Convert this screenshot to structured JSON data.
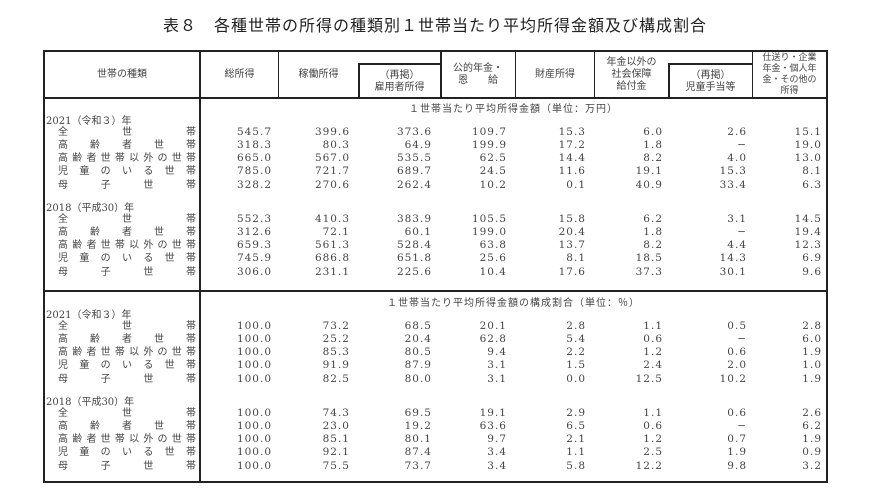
{
  "title": "表８　各種世帯の所得の種類別１世帯当たり平均所得金額及び構成割合",
  "headers": {
    "household_type": "世帯の種類",
    "total_income": "総所得",
    "earned_income": "稼働所得",
    "employee_income": "（再掲）\n雇用者所得",
    "public_pension": "公的年金・\n恩　　給",
    "property_income": "財産所得",
    "social_security": "年金以外の\n社会保障\n給付金",
    "child_allowance": "（再掲）\n児童手当等",
    "other_income": "仕送り・企業\n年金・個人年\n金・その他の\n所得"
  },
  "sections": [
    {
      "caption": "１世帯当たり平均所得金額（単位：万円）",
      "groups": [
        {
          "year": "2021（令和３）年",
          "rows": [
            {
              "label": "全世帯",
              "values": [
                "545.7",
                "399.6",
                "373.6",
                "109.7",
                "15.3",
                "6.0",
                "2.6",
                "15.1"
              ]
            },
            {
              "label": "高齢者世帯",
              "values": [
                "318.3",
                "80.3",
                "64.9",
                "199.9",
                "17.2",
                "1.8",
                "−",
                "19.0"
              ]
            },
            {
              "label": "高齢者世帯以外の世帯",
              "values": [
                "665.0",
                "567.0",
                "535.5",
                "62.5",
                "14.4",
                "8.2",
                "4.0",
                "13.0"
              ]
            },
            {
              "label": "児童のいる世帯",
              "values": [
                "785.0",
                "721.7",
                "689.7",
                "24.5",
                "11.6",
                "19.1",
                "15.3",
                "8.1"
              ]
            },
            {
              "label": "母子世帯",
              "values": [
                "328.2",
                "270.6",
                "262.4",
                "10.2",
                "0.1",
                "40.9",
                "33.4",
                "6.3"
              ]
            }
          ]
        },
        {
          "year": "2018（平成30）年",
          "rows": [
            {
              "label": "全世帯",
              "values": [
                "552.3",
                "410.3",
                "383.9",
                "105.5",
                "15.8",
                "6.2",
                "3.1",
                "14.5"
              ]
            },
            {
              "label": "高齢者世帯",
              "values": [
                "312.6",
                "72.1",
                "60.1",
                "199.0",
                "20.4",
                "1.8",
                "−",
                "19.4"
              ]
            },
            {
              "label": "高齢者世帯以外の世帯",
              "values": [
                "659.3",
                "561.3",
                "528.4",
                "63.8",
                "13.7",
                "8.2",
                "4.4",
                "12.3"
              ]
            },
            {
              "label": "児童のいる世帯",
              "values": [
                "745.9",
                "686.8",
                "651.8",
                "25.6",
                "8.1",
                "18.5",
                "14.3",
                "6.9"
              ]
            },
            {
              "label": "母子世帯",
              "values": [
                "306.0",
                "231.1",
                "225.6",
                "10.4",
                "17.6",
                "37.3",
                "30.1",
                "9.6"
              ]
            }
          ]
        }
      ]
    },
    {
      "caption": "１世帯当たり平均所得金額の構成割合（単位：％）",
      "groups": [
        {
          "year": "2021（令和３）年",
          "rows": [
            {
              "label": "全世帯",
              "values": [
                "100.0",
                "73.2",
                "68.5",
                "20.1",
                "2.8",
                "1.1",
                "0.5",
                "2.8"
              ]
            },
            {
              "label": "高齢者世帯",
              "values": [
                "100.0",
                "25.2",
                "20.4",
                "62.8",
                "5.4",
                "0.6",
                "−",
                "6.0"
              ]
            },
            {
              "label": "高齢者世帯以外の世帯",
              "values": [
                "100.0",
                "85.3",
                "80.5",
                "9.4",
                "2.2",
                "1.2",
                "0.6",
                "1.9"
              ]
            },
            {
              "label": "児童のいる世帯",
              "values": [
                "100.0",
                "91.9",
                "87.9",
                "3.1",
                "1.5",
                "2.4",
                "2.0",
                "1.0"
              ]
            },
            {
              "label": "母子世帯",
              "values": [
                "100.0",
                "82.5",
                "80.0",
                "3.1",
                "0.0",
                "12.5",
                "10.2",
                "1.9"
              ]
            }
          ]
        },
        {
          "year": "2018（平成30）年",
          "rows": [
            {
              "label": "全世帯",
              "values": [
                "100.0",
                "74.3",
                "69.5",
                "19.1",
                "2.9",
                "1.1",
                "0.6",
                "2.6"
              ]
            },
            {
              "label": "高齢者世帯",
              "values": [
                "100.0",
                "23.0",
                "19.2",
                "63.6",
                "6.5",
                "0.6",
                "−",
                "6.2"
              ]
            },
            {
              "label": "高齢者世帯以外の世帯",
              "values": [
                "100.0",
                "85.1",
                "80.1",
                "9.7",
                "2.1",
                "1.2",
                "0.7",
                "1.9"
              ]
            },
            {
              "label": "児童のいる世帯",
              "values": [
                "100.0",
                "92.1",
                "87.4",
                "3.4",
                "1.1",
                "2.5",
                "1.9",
                "0.9"
              ]
            },
            {
              "label": "母子世帯",
              "values": [
                "100.0",
                "75.5",
                "73.7",
                "3.4",
                "5.8",
                "12.2",
                "9.8",
                "3.2"
              ]
            }
          ]
        }
      ]
    }
  ]
}
